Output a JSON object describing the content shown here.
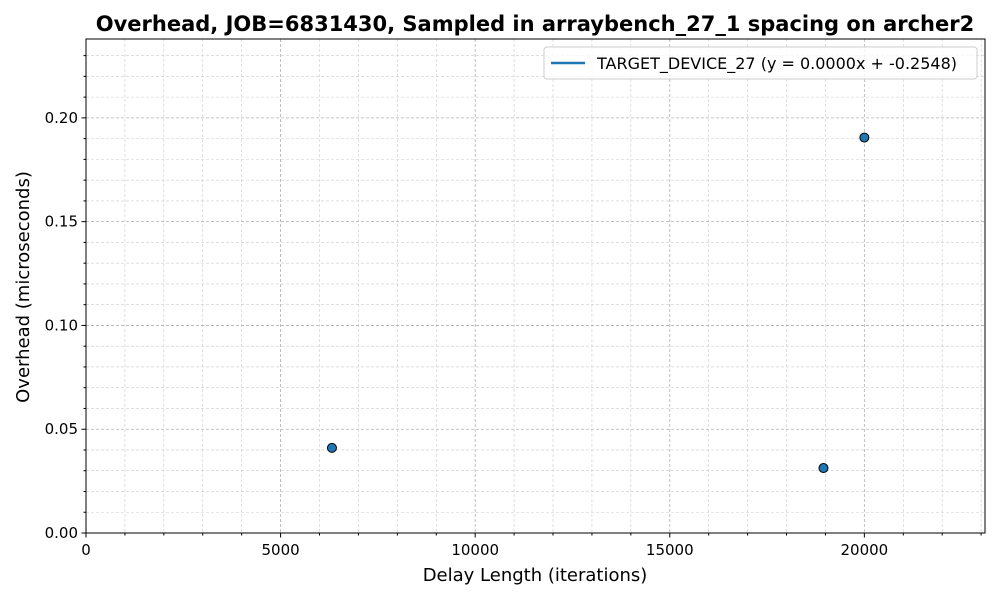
{
  "chart_data": {
    "type": "scatter",
    "title": "Overhead, JOB=6831430, Sampled in arraybench_27_1 spacing on archer2",
    "xlabel": "Delay Length (iterations)",
    "ylabel": "Overhead (microseconds)",
    "xlim": [
      0,
      23100
    ],
    "ylim": [
      0,
      0.238
    ],
    "xticks": [
      0,
      5000,
      10000,
      15000,
      20000
    ],
    "yticks": [
      0.0,
      0.05,
      0.1,
      0.15,
      0.2
    ],
    "xtick_labels": [
      "0",
      "5000",
      "10000",
      "15000",
      "20000"
    ],
    "ytick_labels": [
      "0.00",
      "0.05",
      "0.10",
      "0.15",
      "0.20"
    ],
    "grid": true,
    "legend_position": "top-right",
    "series": [
      {
        "name": "TARGET_DEVICE_27 (y = 0.0000x + -0.2548)",
        "color": "#1f77b4",
        "points": [
          {
            "x": 6320,
            "y": 0.041
          },
          {
            "x": 18950,
            "y": 0.0313
          },
          {
            "x": 20000,
            "y": 0.1905
          }
        ]
      }
    ]
  }
}
